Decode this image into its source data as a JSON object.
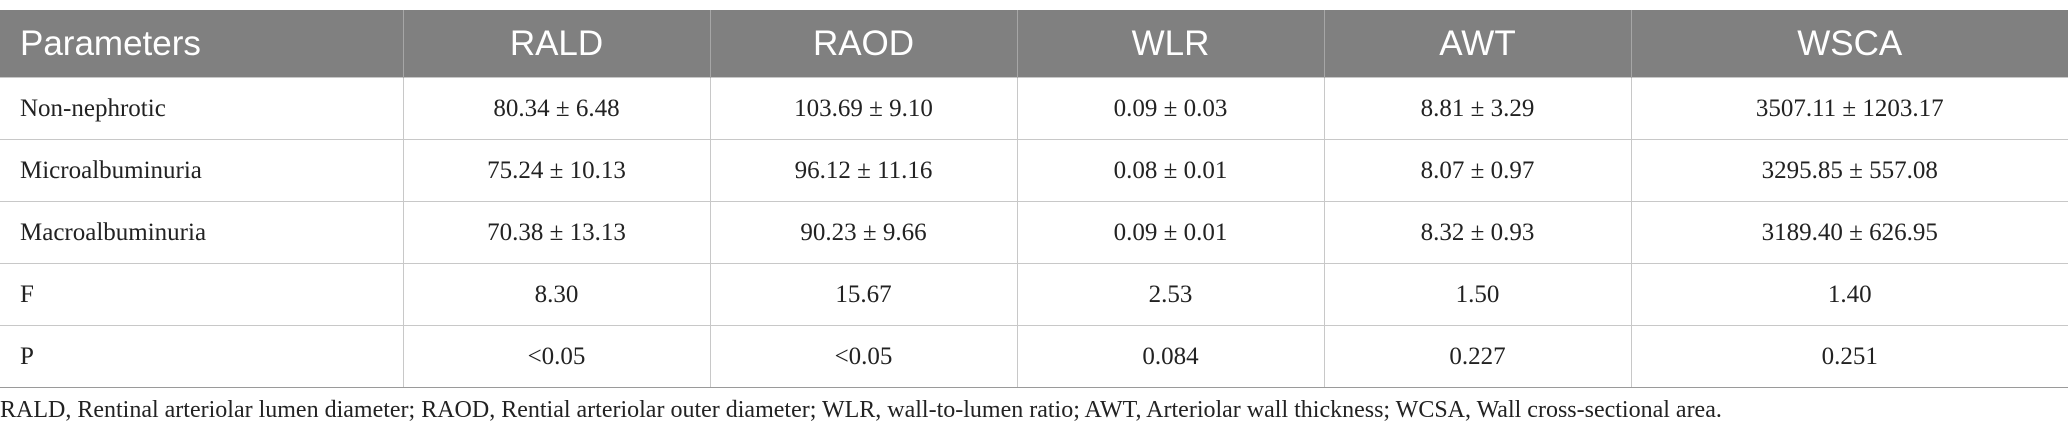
{
  "table": {
    "headers": [
      "Parameters",
      "RALD",
      "RAOD",
      "WLR",
      "AWT",
      "WSCA"
    ],
    "rows": [
      [
        "Non-nephrotic",
        "80.34 ± 6.48",
        "103.69 ± 9.10",
        "0.09 ± 0.03",
        "8.81 ± 3.29",
        "3507.11 ± 1203.17"
      ],
      [
        "Microalbuminuria",
        "75.24 ± 10.13",
        "96.12 ± 11.16",
        "0.08 ± 0.01",
        "8.07 ± 0.97",
        "3295.85 ± 557.08"
      ],
      [
        "Macroalbuminuria",
        "70.38 ± 13.13",
        "90.23 ± 9.66",
        "0.09 ± 0.01",
        "8.32 ± 0.93",
        "3189.40 ± 626.95"
      ],
      [
        "F",
        "8.30",
        "15.67",
        "2.53",
        "1.50",
        "1.40"
      ],
      [
        "P",
        "<0.05",
        "<0.05",
        "0.084",
        "0.227",
        "0.251"
      ]
    ]
  },
  "footnote": "RALD, Rentinal arteriolar lumen diameter; RAOD, Rential arteriolar outer diameter; WLR, wall-to-lumen ratio; AWT, Arteriolar wall thickness; WCSA, Wall cross-sectional area.",
  "colors": {
    "header_bg": "#808080",
    "header_text": "#ffffff",
    "grid_line": "#c8c8c8",
    "body_text": "#222222"
  }
}
